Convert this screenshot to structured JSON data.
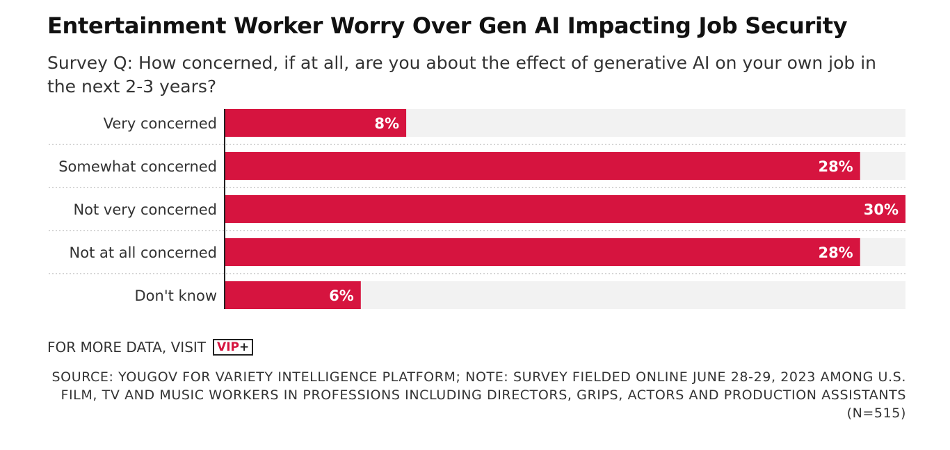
{
  "header": {
    "title": "Entertainment Worker Worry Over Gen AI Impacting Job Security",
    "subtitle": "Survey Q: How concerned, if at all, are you about the effect of generative AI on your own job in the next 2-3 years?"
  },
  "footer": {
    "more_data_label": "FOR MORE DATA, VISIT",
    "vip_badge": "VIP",
    "vip_plus": "+",
    "source": "SOURCE: YOUGOV FOR VARIETY INTELLIGENCE PLATFORM; NOTE: SURVEY FIELDED ONLINE JUNE 28-29, 2023 AMONG U.S. FILM, TV AND MUSIC WORKERS IN PROFESSIONS INCLUDING DIRECTORS, GRIPS, ACTORS AND PRODUCTION ASSISTANTS (N=515)"
  },
  "colors": {
    "bar": "#d6143f",
    "track": "#f2f2f2",
    "label": "#333333",
    "value_text": "#ffffff"
  },
  "chart_data": {
    "type": "bar",
    "orientation": "horizontal",
    "categories": [
      "Very concerned",
      "Somewhat concerned",
      "Not very concerned",
      "Not at all concerned",
      "Don't know"
    ],
    "values": [
      8,
      28,
      30,
      28,
      6
    ],
    "value_labels": [
      "8%",
      "28%",
      "30%",
      "28%",
      "6%"
    ],
    "unit": "%",
    "xlim": [
      0,
      30
    ],
    "grid": false,
    "legend": "none"
  }
}
